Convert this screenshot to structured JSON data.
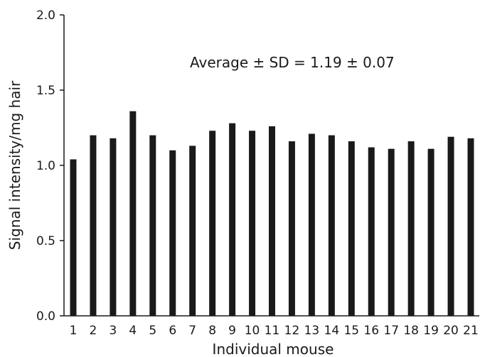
{
  "chart_data": {
    "type": "bar",
    "title": "",
    "xlabel": "Individual mouse",
    "ylabel": "Signal intensity/mg hair",
    "ylim": [
      0,
      2.0
    ],
    "yticks": [
      0.0,
      0.5,
      1.0,
      1.5,
      2.0
    ],
    "ytick_labels": [
      "0.0",
      "0.5",
      "1.0",
      "1.5",
      "2.0"
    ],
    "categories": [
      "1",
      "2",
      "3",
      "4",
      "5",
      "6",
      "7",
      "8",
      "9",
      "10",
      "11",
      "12",
      "13",
      "14",
      "15",
      "16",
      "17",
      "18",
      "19",
      "20",
      "21"
    ],
    "values": [
      1.04,
      1.2,
      1.18,
      1.36,
      1.2,
      1.1,
      1.13,
      1.23,
      1.28,
      1.23,
      1.26,
      1.16,
      1.21,
      1.2,
      1.16,
      1.12,
      1.11,
      1.16,
      1.11,
      1.19,
      1.18
    ],
    "annotation": "Average ± SD = 1.19 ± 0.07",
    "bar_color": "#1a1a1a",
    "grid": false,
    "legend": "none"
  }
}
